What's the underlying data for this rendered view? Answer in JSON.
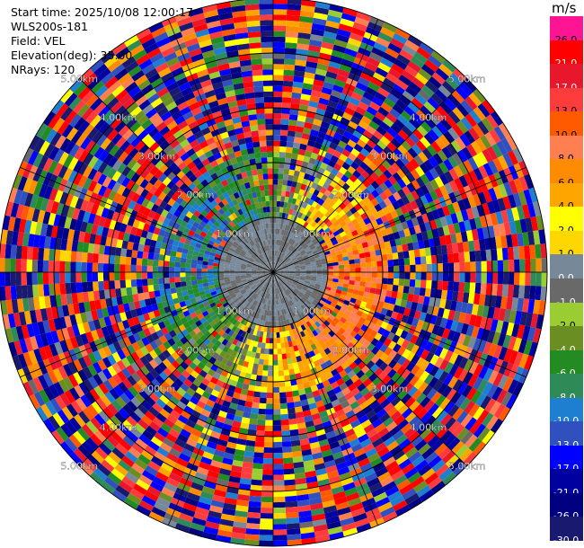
{
  "header": {
    "start_time": "Start time: 2025/10/08 12:00:17",
    "instrument": "WLS200s-181",
    "field": "Field: VEL",
    "elevation": "Elevation(deg): 35.00",
    "nrays": "NRays: 120"
  },
  "colorbar": {
    "unit": "m/s",
    "bands": [
      {
        "label": "26.0",
        "color": "#ff1493"
      },
      {
        "label": "21.0",
        "color": "#ff0000"
      },
      {
        "label": "17.0",
        "color": "#e8172c"
      },
      {
        "label": "13.0",
        "color": "#ff3c3c"
      },
      {
        "label": "10.0",
        "color": "#ff5a00"
      },
      {
        "label": "8.0",
        "color": "#ff7f50"
      },
      {
        "label": "6.0",
        "color": "#ff8c00"
      },
      {
        "label": "4.0",
        "color": "#ffa500"
      },
      {
        "label": "2.0",
        "color": "#ffff00"
      },
      {
        "label": "1.0",
        "color": "#ffd700"
      },
      {
        "label": "0.0",
        "color": "#778899"
      },
      {
        "label": "-1.0",
        "color": "#696969"
      },
      {
        "label": "-2.0",
        "color": "#9acd32"
      },
      {
        "label": "-4.0",
        "color": "#6b8e23"
      },
      {
        "label": "-6.0",
        "color": "#228b22"
      },
      {
        "label": "-8.0",
        "color": "#2e8b57"
      },
      {
        "label": "-10.0",
        "color": "#1e7fd0"
      },
      {
        "label": "-13.0",
        "color": "#3050c0"
      },
      {
        "label": "-17.0",
        "color": "#0000ff"
      },
      {
        "label": "-21.0",
        "color": "#0000a0"
      },
      {
        "label": "-26.0",
        "color": "#000080"
      },
      {
        "label": "-30.0",
        "color": "#191970"
      }
    ]
  },
  "chart_data": {
    "type": "heatmap",
    "subtype": "ppi-polar",
    "field": "VEL",
    "unit": "m/s",
    "nrays": 120,
    "range_max_km": 5.0,
    "range_rings_km": [
      1.0,
      2.0,
      3.0,
      4.0,
      5.0
    ],
    "ring_labels": [
      "1.00km",
      "2.00km",
      "3.00km",
      "4.00km",
      "5.00km"
    ],
    "spokes": 16,
    "value_range": [
      -30.0,
      26.0
    ],
    "annotations": "near field (<1 km) ~0 m/s; positive velocities to east/south-east, negative to west/north-west within ~2 km; beyond ~2 km values are noisy across full range"
  }
}
